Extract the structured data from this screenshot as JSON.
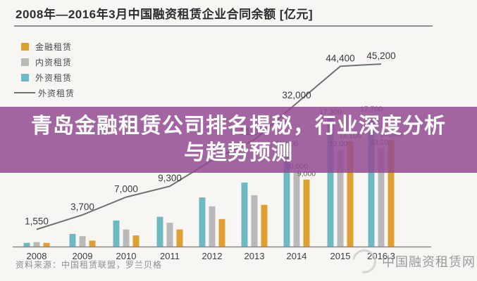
{
  "title": "2008年—2016年3月中国融资租赁企业合同余额 [亿元]",
  "legend": {
    "items": [
      {
        "label": "金融租赁",
        "color": "#dfa032"
      },
      {
        "label": "内资租赁",
        "color": "#b9b9b9"
      },
      {
        "label": "外资租赁",
        "color": "#6fb9c4"
      }
    ],
    "line_item": {
      "label": "外资租赁",
      "color": "#6e726f"
    }
  },
  "overlay": {
    "line1": "青岛金融租赁公司排名揭秘，行业深度分析",
    "line2": "与趋势预测",
    "background_rgba": "rgba(147,73,147,0.84)"
  },
  "footer": {
    "source": "资料来源：中国租赁联盟，罗兰贝格"
  },
  "watermark": {
    "text": "中国融资租赁网"
  },
  "chart_data": {
    "type": "bar",
    "title": "2008年—2016年3月中国融资租赁企业合同余额 [亿元]",
    "unit": "亿元",
    "categories": [
      "2008",
      "2009",
      "2010",
      "2011",
      "2012",
      "2013",
      "2014",
      "2015",
      "2016.3"
    ],
    "series": [
      {
        "name": "外资租赁",
        "color": "#6fb9c4",
        "values": [
          500,
          1700,
          3500,
          4000,
          6600,
          8600,
          13000,
          17300,
          17700
        ],
        "labels": [
          "",
          "",
          "",
          "",
          "",
          "",
          "13,000",
          "17,300",
          "17,700"
        ]
      },
      {
        "name": "内资租赁",
        "color": "#b9b9b9",
        "values": [
          600,
          1400,
          2300,
          3200,
          5400,
          6900,
          10000,
          13000,
          13200
        ],
        "labels": [
          "",
          "",
          "",
          "",
          "",
          "",
          "10,000",
          "13,000",
          "13,200"
        ]
      },
      {
        "name": "金融租赁",
        "color": "#dfa032",
        "values": [
          500,
          800,
          1500,
          2300,
          3700,
          5600,
          9000,
          14100,
          14300
        ],
        "labels": [
          "",
          "",
          "",
          "",
          "",
          "",
          "9,000",
          "14,100",
          "14,300"
        ]
      }
    ],
    "line_series": {
      "name": "外资租赁",
      "color": "#6e726f",
      "values": [
        1550,
        3700,
        7000,
        9300,
        15500,
        21000,
        32000,
        44400,
        45200
      ],
      "labels": [
        "1,550",
        "3,700",
        "7,000",
        "9,300",
        "",
        "21,000",
        "32,000",
        "44,400",
        "45,200"
      ]
    },
    "ylim": [
      0,
      46000
    ],
    "grid": false,
    "legend_position": "top-left"
  }
}
